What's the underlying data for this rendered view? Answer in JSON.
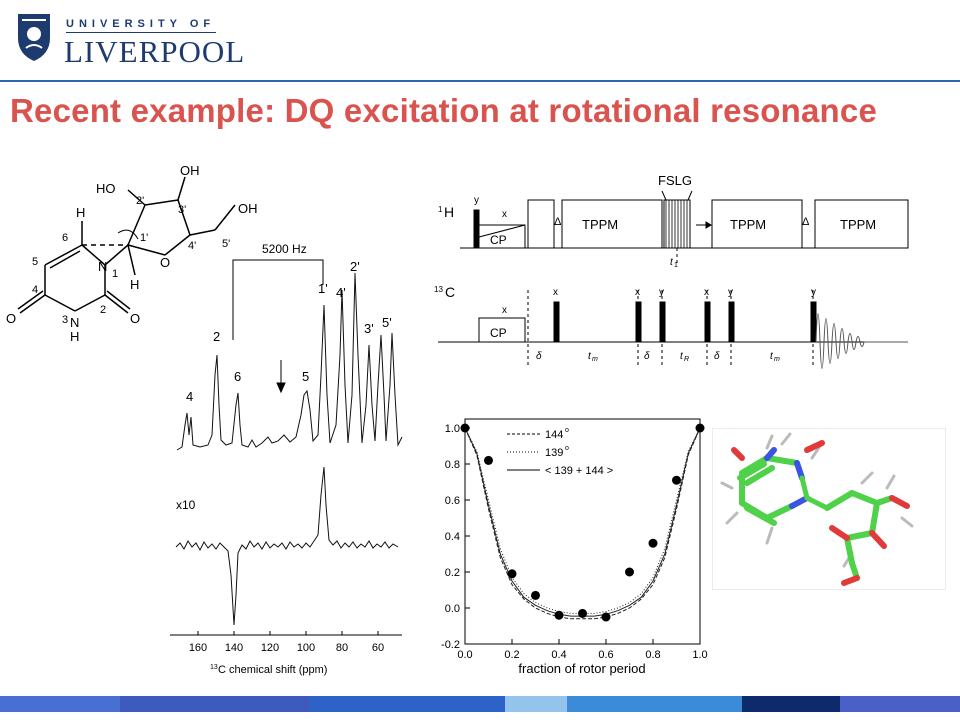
{
  "logo": {
    "top_text": "UNIVERSITY OF",
    "main_text": "LIVERPOOL"
  },
  "slide": {
    "title": "Recent example: DQ excitation at rotational resonance"
  },
  "structure": {
    "atoms": {
      "ho_top": "HO",
      "oh_top": "OH",
      "oh_right": "OH",
      "h_left": "H",
      "h_bottom": "H",
      "n1": "N",
      "n3": "N",
      "h_n3": "H",
      "o_ring": "O",
      "o_c4": "O",
      "o_c2": "O"
    },
    "numbers": {
      "c2p": "2'",
      "c3p": "3'",
      "c1p": "1'",
      "c4p": "4'",
      "c5p": "5'",
      "c6": "6",
      "c5": "5",
      "n1": "1",
      "c4": "4",
      "c2": "2",
      "n3": "3"
    }
  },
  "spectrum": {
    "spacing_label": "5200 Hz",
    "peak_labels": [
      "4",
      "2",
      "6",
      "5",
      "1'",
      "4'",
      "2'",
      "3'",
      "5'"
    ],
    "scale_label": "x10",
    "x_ticks": [
      "160",
      "140",
      "120",
      "100",
      "80",
      "60"
    ],
    "x_axis_label_sup": "13",
    "x_axis_label": "C chemical shift (ppm)"
  },
  "pulse_sequence": {
    "h_channel_sup": "1",
    "h_channel": "H",
    "c_channel_sup": "13",
    "c_channel": "C",
    "blocks": [
      "TPPM",
      "TPPM",
      "TPPM"
    ],
    "fslg": "FSLG",
    "cp": "CP",
    "phase_labels_h": [
      "y",
      "x"
    ],
    "phase_labels_c": [
      "x",
      "x",
      "x",
      "y",
      "x",
      "y",
      "y"
    ],
    "delta": "Δ",
    "small_delta": "δ",
    "t1": "t",
    "t1_sub": "1",
    "tm": "t",
    "tm_sub": "m",
    "tr": "t",
    "tr_sub": "R"
  },
  "chart_data": {
    "type": "scatter",
    "title": "",
    "xlabel": "fraction of rotor period",
    "ylabel": "",
    "xlim": [
      0.0,
      1.0
    ],
    "ylim": [
      -0.2,
      1.05
    ],
    "x_ticks": [
      "0.0",
      "0.2",
      "0.4",
      "0.6",
      "0.8",
      "1.0"
    ],
    "y_ticks": [
      "1.0",
      "0.8",
      "0.6",
      "0.4",
      "0.2",
      "0.0",
      "-0.2"
    ],
    "legend": {
      "placement": "top-center",
      "entries": [
        "144",
        "139",
        "< 139 + 144 >"
      ],
      "sup": "o"
    },
    "points": {
      "x": [
        0.0,
        0.1,
        0.2,
        0.3,
        0.4,
        0.5,
        0.6,
        0.7,
        0.8,
        0.9,
        1.0
      ],
      "y": [
        1.0,
        0.82,
        0.19,
        0.07,
        -0.04,
        -0.03,
        -0.05,
        0.2,
        0.36,
        0.71,
        1.0
      ]
    },
    "curves": [
      {
        "name": "144",
        "style": "dashed",
        "x": [
          0,
          0.05,
          0.1,
          0.15,
          0.2,
          0.25,
          0.3,
          0.35,
          0.4,
          0.45,
          0.5,
          0.55,
          0.6,
          0.65,
          0.7,
          0.75,
          0.8,
          0.85,
          0.9,
          0.95,
          1.0
        ],
        "y": [
          1.0,
          0.85,
          0.55,
          0.28,
          0.13,
          0.05,
          0.0,
          -0.03,
          -0.05,
          -0.06,
          -0.06,
          -0.06,
          -0.05,
          -0.03,
          0.0,
          0.05,
          0.13,
          0.28,
          0.55,
          0.85,
          1.0
        ]
      },
      {
        "name": "139",
        "style": "dotted",
        "x": [
          0,
          0.05,
          0.1,
          0.15,
          0.2,
          0.25,
          0.3,
          0.35,
          0.4,
          0.45,
          0.5,
          0.55,
          0.6,
          0.65,
          0.7,
          0.75,
          0.8,
          0.85,
          0.9,
          0.95,
          1.0
        ],
        "y": [
          1.0,
          0.87,
          0.6,
          0.33,
          0.17,
          0.08,
          0.03,
          0.0,
          -0.02,
          -0.03,
          -0.03,
          -0.03,
          -0.02,
          0.0,
          0.03,
          0.08,
          0.17,
          0.33,
          0.6,
          0.87,
          1.0
        ]
      },
      {
        "name": "< 139 + 144 >",
        "style": "solid",
        "x": [
          0,
          0.05,
          0.1,
          0.15,
          0.2,
          0.25,
          0.3,
          0.35,
          0.4,
          0.45,
          0.5,
          0.55,
          0.6,
          0.65,
          0.7,
          0.75,
          0.8,
          0.85,
          0.9,
          0.95,
          1.0
        ],
        "y": [
          1.0,
          0.86,
          0.57,
          0.3,
          0.15,
          0.06,
          0.015,
          -0.015,
          -0.035,
          -0.045,
          -0.045,
          -0.045,
          -0.035,
          -0.015,
          0.015,
          0.06,
          0.15,
          0.3,
          0.57,
          0.86,
          1.0
        ]
      }
    ]
  },
  "colors": {
    "title": "#d9534f",
    "brand_blue": "#1d3b6e",
    "rule_blue": "#2c67b0",
    "stripes": [
      "#4a6fd3",
      "#3d5bbd",
      "#2d63c8",
      "#94c4ec",
      "#3c8bd6",
      "#223d85",
      "#0e2a6b",
      "#4b60c6"
    ]
  }
}
